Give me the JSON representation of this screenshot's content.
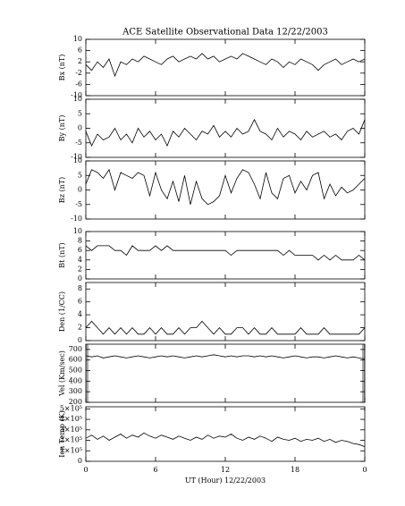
{
  "chart_data": [
    {
      "type": "line",
      "title": "ACE Satellite Observational Data   12/22/2003",
      "y_label": "Bx (nT)",
      "color": "#000000",
      "x": [
        0,
        0.5,
        1,
        1.5,
        2,
        2.5,
        3,
        3.5,
        4,
        4.5,
        5,
        5.5,
        6,
        6.5,
        7,
        7.5,
        8,
        8.5,
        9,
        9.5,
        10,
        10.5,
        11,
        11.5,
        12,
        12.5,
        13,
        13.5,
        14,
        14.5,
        15,
        15.5,
        16,
        16.5,
        17,
        17.5,
        18,
        18.5,
        19,
        19.5,
        20,
        20.5,
        21,
        21.5,
        22,
        22.5,
        23,
        23.5,
        24
      ],
      "values": [
        1,
        -1,
        2,
        0,
        3,
        -3,
        2,
        1,
        3,
        2,
        4,
        3,
        2,
        1,
        3,
        4,
        2,
        3,
        4,
        3,
        5,
        3,
        4,
        2,
        3,
        4,
        3,
        5,
        4,
        3,
        2,
        1,
        3,
        2,
        0,
        2,
        1,
        3,
        2,
        1,
        -1,
        1,
        2,
        3,
        1,
        2,
        3,
        2,
        3
      ],
      "xlim": [
        0,
        24
      ],
      "xticks": [
        0,
        6,
        12,
        18,
        {
          "value": 24,
          "label": "0"
        }
      ],
      "ylim": [
        -10,
        10
      ],
      "yticks": [
        10,
        6,
        2,
        -2,
        -6,
        -10
      ]
    },
    {
      "type": "line",
      "y_label": "By (nT)",
      "color": "#000000",
      "x": [
        0,
        0.5,
        1,
        1.5,
        2,
        2.5,
        3,
        3.5,
        4,
        4.5,
        5,
        5.5,
        6,
        6.5,
        7,
        7.5,
        8,
        8.5,
        9,
        9.5,
        10,
        10.5,
        11,
        11.5,
        12,
        12.5,
        13,
        13.5,
        14,
        14.5,
        15,
        15.5,
        16,
        16.5,
        17,
        17.5,
        18,
        18.5,
        19,
        19.5,
        20,
        20.5,
        21,
        21.5,
        22,
        22.5,
        23,
        23.5,
        24
      ],
      "values": [
        -1,
        -6,
        -2,
        -4,
        -3,
        0,
        -4,
        -2,
        -5,
        0,
        -3,
        -1,
        -4,
        -2,
        -6,
        -1,
        -3,
        0,
        -2,
        -4,
        -1,
        -2,
        1,
        -3,
        -1,
        -3,
        0,
        -2,
        -1,
        3,
        -1,
        -2,
        -4,
        0,
        -3,
        -1,
        -2,
        -4,
        -1,
        -3,
        -2,
        -1,
        -3,
        -2,
        -4,
        -1,
        0,
        -2,
        3
      ],
      "xlim": [
        0,
        24
      ],
      "xticks": [
        0,
        6,
        12,
        18,
        {
          "value": 24,
          "label": "0"
        }
      ],
      "ylim": [
        -10,
        10
      ],
      "yticks": [
        10,
        5,
        0,
        -5,
        -10
      ]
    },
    {
      "type": "line",
      "y_label": "Bz (nT)",
      "color": "#000000",
      "x": [
        0,
        0.5,
        1,
        1.5,
        2,
        2.5,
        3,
        3.5,
        4,
        4.5,
        5,
        5.5,
        6,
        6.5,
        7,
        7.5,
        8,
        8.5,
        9,
        9.5,
        10,
        10.5,
        11,
        11.5,
        12,
        12.5,
        13,
        13.5,
        14,
        14.5,
        15,
        15.5,
        16,
        16.5,
        17,
        17.5,
        18,
        18.5,
        19,
        19.5,
        20,
        20.5,
        21,
        21.5,
        22,
        22.5,
        23,
        23.5,
        24
      ],
      "values": [
        2,
        7,
        6,
        4,
        7,
        0,
        6,
        5,
        4,
        6,
        5,
        -2,
        6,
        0,
        -3,
        3,
        -4,
        5,
        -5,
        3,
        -3,
        -5,
        -4,
        -2,
        5,
        -1,
        4,
        7,
        6,
        2,
        -3,
        6,
        -1,
        -3,
        4,
        5,
        -1,
        3,
        0,
        5,
        6,
        -3,
        2,
        -2,
        1,
        -1,
        0,
        2,
        4
      ],
      "xlim": [
        0,
        24
      ],
      "xticks": [
        0,
        6,
        12,
        18,
        {
          "value": 24,
          "label": "0"
        }
      ],
      "ylim": [
        -10,
        10
      ],
      "yticks": [
        10,
        5,
        0,
        -5,
        -10
      ]
    },
    {
      "type": "line",
      "y_label": "Bt (nT)",
      "color": "#000000",
      "x": [
        0,
        0.5,
        1,
        1.5,
        2,
        2.5,
        3,
        3.5,
        4,
        4.5,
        5,
        5.5,
        6,
        6.5,
        7,
        7.5,
        8,
        8.5,
        9,
        9.5,
        10,
        10.5,
        11,
        11.5,
        12,
        12.5,
        13,
        13.5,
        14,
        14.5,
        15,
        15.5,
        16,
        16.5,
        17,
        17.5,
        18,
        18.5,
        19,
        19.5,
        20,
        20.5,
        21,
        21.5,
        22,
        22.5,
        23,
        23.5,
        24
      ],
      "values": [
        7,
        6,
        7,
        7,
        7,
        6,
        6,
        5,
        7,
        6,
        6,
        6,
        7,
        6,
        7,
        6,
        6,
        6,
        6,
        6,
        6,
        6,
        6,
        6,
        6,
        5,
        6,
        6,
        6,
        6,
        6,
        6,
        6,
        6,
        5,
        6,
        5,
        5,
        5,
        5,
        4,
        5,
        4,
        5,
        4,
        4,
        4,
        5,
        4
      ],
      "xlim": [
        0,
        24
      ],
      "xticks": [
        0,
        6,
        12,
        18,
        {
          "value": 24,
          "label": "0"
        }
      ],
      "ylim": [
        0,
        10
      ],
      "yticks": [
        10,
        8,
        6,
        4,
        2,
        0
      ]
    },
    {
      "type": "line",
      "y_label": "Den (1/CC)",
      "color": "#000000",
      "x": [
        0,
        0.5,
        1,
        1.5,
        2,
        2.5,
        3,
        3.5,
        4,
        4.5,
        5,
        5.5,
        6,
        6.5,
        7,
        7.5,
        8,
        8.5,
        9,
        9.5,
        10,
        10.5,
        11,
        11.5,
        12,
        12.5,
        13,
        13.5,
        14,
        14.5,
        15,
        15.5,
        16,
        16.5,
        17,
        17.5,
        18,
        18.5,
        19,
        19.5,
        20,
        20.5,
        21,
        21.5,
        22,
        22.5,
        23,
        23.5,
        24
      ],
      "values": [
        2,
        3,
        2,
        1,
        2,
        1,
        2,
        1,
        2,
        1,
        1,
        2,
        1,
        2,
        1,
        1,
        2,
        1,
        2,
        2,
        3,
        2,
        1,
        2,
        1,
        1,
        2,
        2,
        1,
        2,
        1,
        1,
        2,
        1,
        1,
        1,
        1,
        2,
        1,
        1,
        1,
        2,
        1,
        1,
        1,
        1,
        1,
        1,
        2
      ],
      "xlim": [
        0,
        24
      ],
      "xticks": [
        0,
        6,
        12,
        18,
        {
          "value": 24,
          "label": "0"
        }
      ],
      "ylim": [
        0,
        9
      ],
      "yticks": [
        8,
        6,
        4,
        2,
        0
      ]
    },
    {
      "type": "line",
      "y_label": "Vel (Km/sec)",
      "color": "#000000",
      "x": [
        0,
        0.5,
        1,
        1.5,
        2,
        2.5,
        3,
        3.5,
        4,
        4.5,
        5,
        5.5,
        6,
        6.5,
        7,
        7.5,
        8,
        8.5,
        9,
        9.5,
        10,
        10.5,
        11,
        11.5,
        12,
        12.5,
        13,
        13.5,
        14,
        14.5,
        15,
        15.5,
        16,
        16.5,
        17,
        17.5,
        18,
        18.5,
        19,
        19.5,
        20,
        20.5,
        21,
        21.5,
        22,
        22.5,
        23,
        23.5,
        24
      ],
      "values": [
        640,
        630,
        640,
        620,
        630,
        640,
        630,
        620,
        630,
        640,
        630,
        620,
        630,
        640,
        630,
        640,
        630,
        620,
        630,
        640,
        630,
        640,
        650,
        640,
        630,
        640,
        630,
        640,
        640,
        630,
        640,
        630,
        640,
        630,
        620,
        630,
        640,
        630,
        620,
        630,
        630,
        620,
        630,
        640,
        630,
        620,
        630,
        620,
        610
      ],
      "xlim": [
        0,
        24
      ],
      "xticks": [
        0,
        6,
        12,
        18,
        {
          "value": 24,
          "label": "0"
        }
      ],
      "ylim": [
        200,
        750
      ],
      "yticks": [
        700,
        600,
        500,
        400,
        300,
        200
      ]
    },
    {
      "type": "line",
      "y_label": "Ion Temp (K)",
      "x_label": "UT (Hour)   12/22/2003",
      "color": "#000000",
      "x": [
        0,
        0.5,
        1,
        1.5,
        2,
        2.5,
        3,
        3.5,
        4,
        4.5,
        5,
        5.5,
        6,
        6.5,
        7,
        7.5,
        8,
        8.5,
        9,
        9.5,
        10,
        10.5,
        11,
        11.5,
        12,
        12.5,
        13,
        13.5,
        14,
        14.5,
        15,
        15.5,
        16,
        16.5,
        17,
        17.5,
        18,
        18.5,
        19,
        19.5,
        20,
        20.5,
        21,
        21.5,
        22,
        22.5,
        23,
        23.5,
        24
      ],
      "values": [
        220000,
        250000,
        210000,
        240000,
        200000,
        230000,
        260000,
        220000,
        250000,
        230000,
        270000,
        240000,
        220000,
        250000,
        230000,
        210000,
        240000,
        220000,
        200000,
        230000,
        210000,
        250000,
        220000,
        240000,
        230000,
        260000,
        220000,
        200000,
        230000,
        210000,
        240000,
        220000,
        190000,
        230000,
        210000,
        200000,
        220000,
        190000,
        210000,
        200000,
        220000,
        190000,
        210000,
        180000,
        200000,
        190000,
        170000,
        160000,
        140000
      ],
      "xlim": [
        0,
        24
      ],
      "xticks": [
        0,
        6,
        12,
        18,
        {
          "value": 24,
          "label": "0"
        }
      ],
      "ylim": [
        0,
        520000
      ],
      "yticks": [
        {
          "value": 500000,
          "label": "5×10⁵"
        },
        {
          "value": 400000,
          "label": "4×10⁵"
        },
        {
          "value": 300000,
          "label": "3×10⁵"
        },
        {
          "value": 200000,
          "label": "2×10⁵"
        },
        {
          "value": 100000,
          "label": "1×10⁵"
        },
        0
      ]
    }
  ]
}
